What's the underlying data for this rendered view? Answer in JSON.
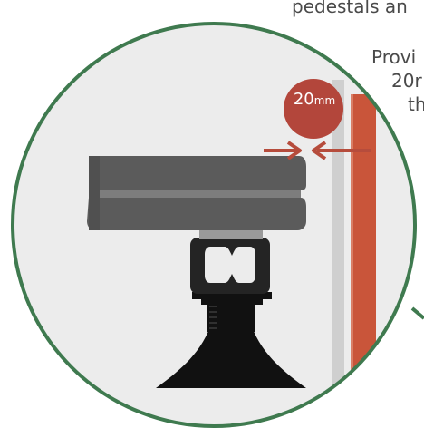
{
  "background_text": {
    "line1": "pedestals an",
    "line2": "Provi",
    "line3": "20r",
    "line4": "th"
  },
  "gap_badge": {
    "value": "20",
    "unit": "mm"
  },
  "colors": {
    "circle_border": "#3f7a4f",
    "circle_fill": "#ececec",
    "board_dark": "#585858",
    "board_light": "#7b7b7b",
    "pedestal": "#111111",
    "wall_orange": "#c9553a",
    "wall_grey": "#cfcfcf",
    "arrow_red": "#b64c3c",
    "badge_red": "#b3463b"
  },
  "icons": [
    "left-arrow-icon",
    "right-arrow-icon"
  ]
}
